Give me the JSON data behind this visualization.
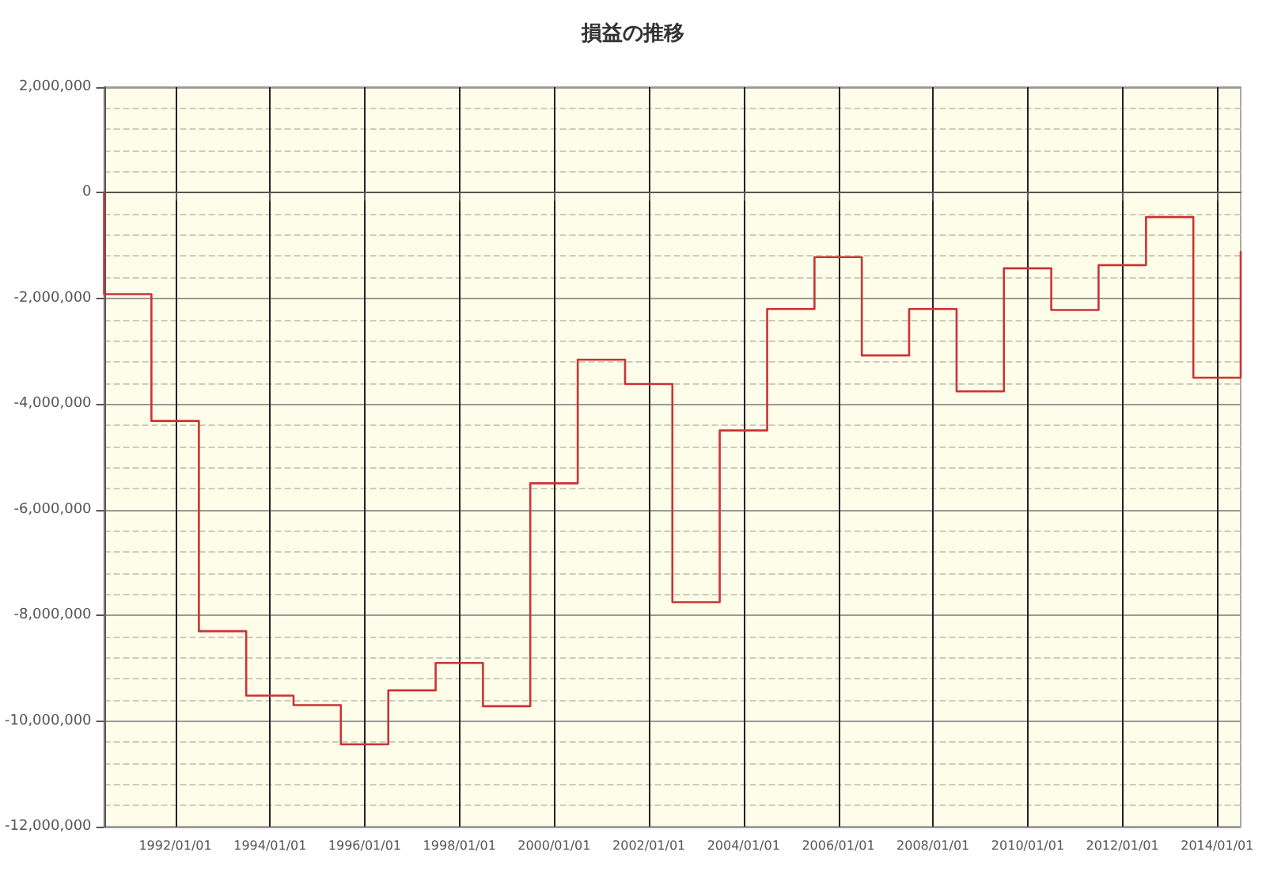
{
  "chart_data": {
    "type": "step",
    "title": "損益の推移",
    "x": [
      "1990-07-01",
      "1990-07-01",
      "1991-07-01",
      "1992-07-01",
      "1993-07-01",
      "1994-07-01",
      "1995-07-01",
      "1996-07-01",
      "1997-07-01",
      "1998-07-01",
      "1999-07-01",
      "2000-07-01",
      "2001-07-01",
      "2002-07-01",
      "2003-07-01",
      "2004-07-01",
      "2005-07-01",
      "2006-07-01",
      "2007-07-01",
      "2008-07-01",
      "2009-07-01",
      "2010-07-01",
      "2011-07-01",
      "2012-07-01",
      "2013-07-01",
      "2014-07-01"
    ],
    "series": [
      {
        "color": "#cc3333",
        "values": [
          0,
          -1920000,
          -4320000,
          -8300000,
          -9520000,
          -9700000,
          -10440000,
          -9420000,
          -8900000,
          -9720000,
          -5500000,
          -3160000,
          -3620000,
          -7750000,
          -4500000,
          -2200000,
          -1220000,
          -3080000,
          -2200000,
          -3760000,
          -1430000,
          -2220000,
          -1370000,
          -460000,
          -3500000,
          -1120000
        ]
      }
    ],
    "xlim": [
      "1990-07-01",
      "2014-07-01"
    ],
    "xticks": [
      {
        "value": "1992-01-01",
        "label": "1992/01/01"
      },
      {
        "value": "1994-01-01",
        "label": "1994/01/01"
      },
      {
        "value": "1996-01-01",
        "label": "1996/01/01"
      },
      {
        "value": "1998-01-01",
        "label": "1998/01/01"
      },
      {
        "value": "2000-01-01",
        "label": "2000/01/01"
      },
      {
        "value": "2002-01-01",
        "label": "2002/01/01"
      },
      {
        "value": "2004-01-01",
        "label": "2004/01/01"
      },
      {
        "value": "2006-01-01",
        "label": "2006/01/01"
      },
      {
        "value": "2008-01-01",
        "label": "2008/01/01"
      },
      {
        "value": "2010-01-01",
        "label": "2010/01/01"
      },
      {
        "value": "2012-01-01",
        "label": "2012/01/01"
      },
      {
        "value": "2014-01-01",
        "label": "2014/01/01"
      }
    ],
    "ylim": [
      -12000000,
      2000000
    ],
    "yticks": [
      {
        "value": -12000000,
        "label": "-12,000,000"
      },
      {
        "value": -10000000,
        "label": "-10,000,000"
      },
      {
        "value": -8000000,
        "label": "-8,000,000"
      },
      {
        "value": -6000000,
        "label": "-6,000,000"
      },
      {
        "value": -4000000,
        "label": "-4,000,000"
      },
      {
        "value": -2000000,
        "label": "-2,000,000"
      },
      {
        "value": 0,
        "label": "0"
      },
      {
        "value": 2000000,
        "label": "2,000,000"
      }
    ],
    "grid": true,
    "marker": "none",
    "line_style": "solid"
  }
}
